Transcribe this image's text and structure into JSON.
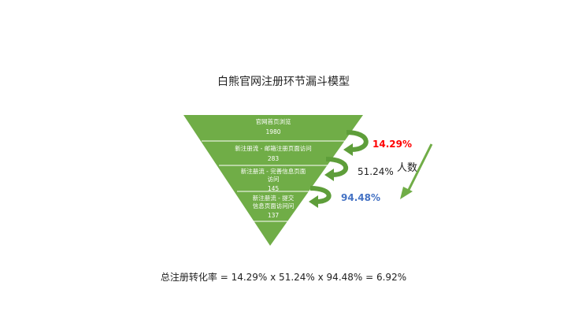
{
  "title": "白熊官网注册环节漏斗模型",
  "funnel": {
    "stages": [
      {
        "lines": [
          "官网首页浏览"
        ],
        "value": "1980"
      },
      {
        "lines": [
          "新注册流 - 邮箱注册页面访问"
        ],
        "value": "283"
      },
      {
        "lines": [
          "新注册流 - 完善信息页面",
          "访问"
        ],
        "value": "145"
      },
      {
        "lines": [
          "新注册流 - 提交",
          "信息页面访问问"
        ],
        "value": "137"
      }
    ],
    "fill_color": "#70AD47",
    "arrow_color": "#5E9E3A"
  },
  "rates": [
    {
      "text": "14.29%",
      "color": "#FF0000",
      "bold": true
    },
    {
      "text": "51.24%",
      "color": "#222222",
      "bold": false
    },
    {
      "text": "94.48%",
      "color": "#4472C4",
      "bold": true
    }
  ],
  "side_label": "人数",
  "formula": "总注册转化率 = 14.29% x 51.24% x 94.48% = 6.92%"
}
